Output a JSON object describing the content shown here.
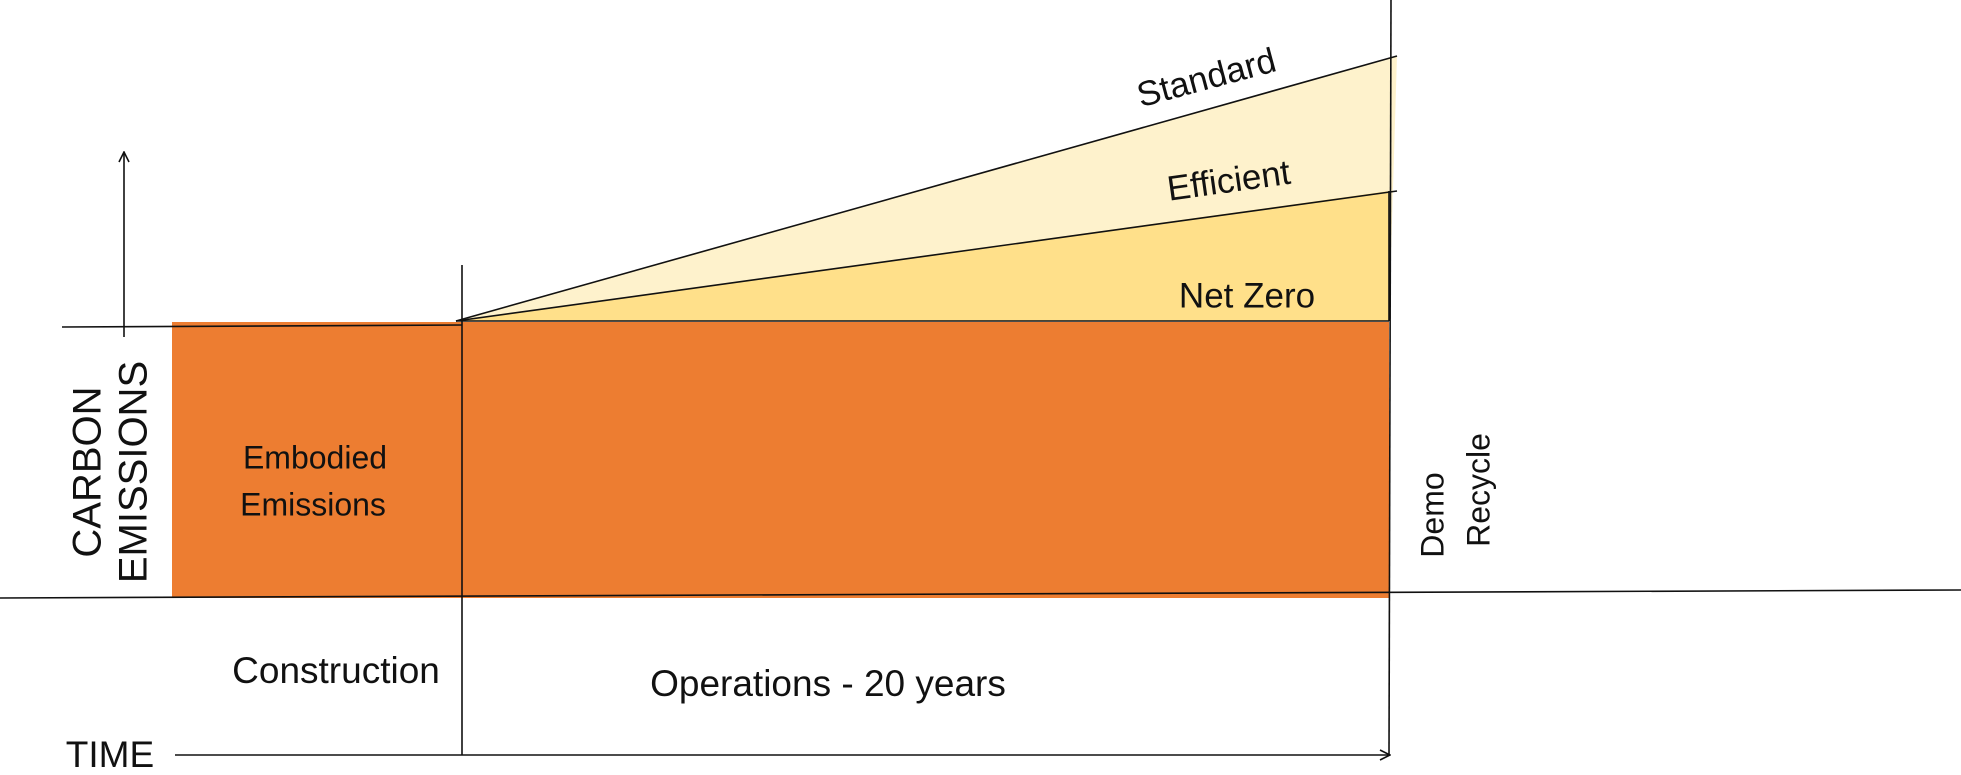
{
  "diagram": {
    "scenarios": {
      "standard": "Standard",
      "efficient": "Efficient",
      "net_zero": "Net Zero"
    },
    "embodied": [
      "Embodied",
      "Emissions"
    ],
    "y_axis": [
      "CARBON",
      "EMISSIONS"
    ],
    "end_of_life": [
      "Demo",
      "Recycle"
    ],
    "phases": {
      "construction": "Construction",
      "operations": "Operations - 20 years"
    },
    "x_axis": "TIME"
  }
}
